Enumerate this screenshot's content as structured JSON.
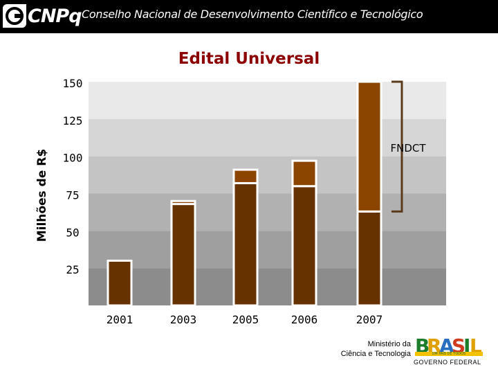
{
  "header": {
    "logo_text": "CNPq",
    "title": "Conselho Nacional de Desenvolvimento Científico e Tecnológico"
  },
  "footer": {
    "ministry_line1": "Ministério da",
    "ministry_line2": "Ciência e Tecnologia",
    "brasil_letters": [
      "B",
      "R",
      "A",
      "S",
      "I",
      "L"
    ],
    "brasil_tagline": "UM PAÍS DE TODOS",
    "government": "GOVERNO FEDERAL"
  },
  "colors": {
    "bar_base": "#663300",
    "bar_fndct": "#8b4500",
    "title": "#8b0000",
    "band_top": "#e9e9e9",
    "band_bottom": "#8c8c8c"
  },
  "chart_data": {
    "type": "bar",
    "title": "Edital Universal",
    "ylabel": "Milhões de R$",
    "xlabel": "",
    "ylim": [
      0,
      150
    ],
    "yticks": [
      25,
      50,
      75,
      100,
      125,
      150
    ],
    "categories": [
      "2001",
      "2003",
      "2005",
      "2006",
      "2007"
    ],
    "series": [
      {
        "values": [
          30,
          68,
          82,
          80,
          63
        ]
      },
      {
        "values": [
          0,
          2,
          9,
          17,
          87
        ]
      }
    ],
    "annotation": {
      "label": "FNDCT",
      "category": "2007",
      "y_from": 63,
      "y_to": 150
    },
    "grid": false
  }
}
